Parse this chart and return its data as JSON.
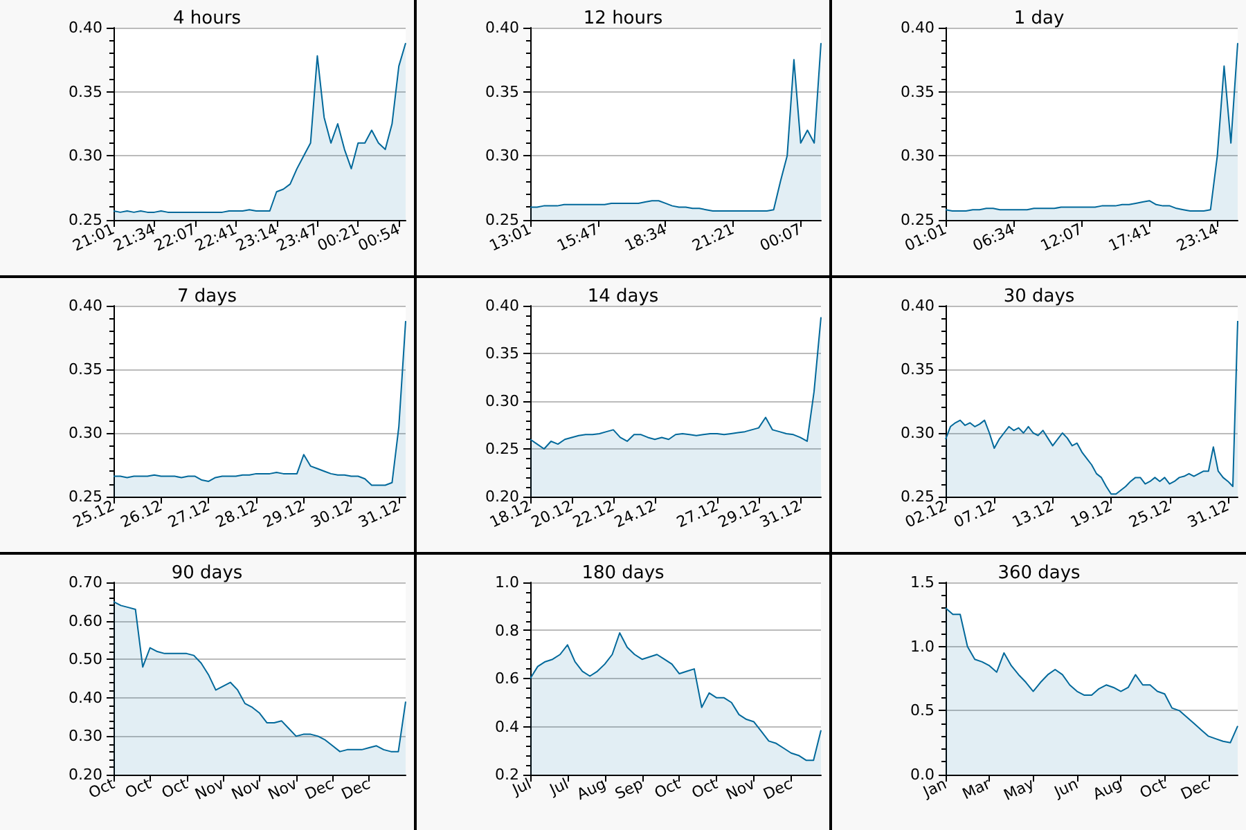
{
  "chart_data": [
    {
      "type": "area",
      "title": "4 hours",
      "color": "#00689a",
      "grid": "y",
      "ylim": [
        0.25,
        0.4
      ],
      "yticks": [
        0.25,
        {
          "value": 0.3,
          "label": "0.30"
        },
        0.35,
        {
          "value": 0.4,
          "label": "0.40"
        }
      ],
      "categories": [
        "21:01",
        null,
        null,
        null,
        null,
        null,
        "21:34",
        null,
        null,
        null,
        null,
        null,
        "22:07",
        null,
        null,
        null,
        null,
        null,
        "22:41",
        null,
        null,
        null,
        null,
        null,
        "23:14",
        null,
        null,
        null,
        null,
        null,
        "23:47",
        null,
        null,
        null,
        null,
        null,
        "00:21",
        null,
        null,
        null,
        null,
        null,
        "00:54",
        null
      ],
      "values": [
        0.257,
        0.256,
        0.257,
        0.256,
        0.257,
        0.256,
        0.256,
        0.257,
        0.256,
        0.256,
        0.256,
        0.256,
        0.256,
        0.256,
        0.256,
        0.256,
        0.256,
        0.257,
        0.257,
        0.257,
        0.258,
        0.257,
        0.257,
        0.257,
        0.272,
        0.274,
        0.278,
        0.29,
        0.3,
        0.31,
        0.378,
        0.33,
        0.31,
        0.325,
        0.305,
        0.29,
        0.31,
        0.31,
        0.32,
        0.31,
        0.305,
        0.325,
        0.37,
        0.388
      ]
    },
    {
      "type": "area",
      "title": "12 hours",
      "color": "#00689a",
      "grid": "y",
      "ylim": [
        0.25,
        0.4
      ],
      "yticks": [
        0.25,
        {
          "value": 0.3,
          "label": "0.30"
        },
        0.35,
        {
          "value": 0.4,
          "label": "0.40"
        }
      ],
      "categories": [
        "13:01",
        null,
        null,
        null,
        null,
        null,
        null,
        null,
        null,
        null,
        "15:47",
        null,
        null,
        null,
        null,
        null,
        null,
        null,
        null,
        null,
        "18:34",
        null,
        null,
        null,
        null,
        null,
        null,
        null,
        null,
        null,
        "21:21",
        null,
        null,
        null,
        null,
        null,
        null,
        null,
        null,
        null,
        "00:07",
        null,
        null,
        null
      ],
      "values": [
        0.26,
        0.26,
        0.261,
        0.261,
        0.261,
        0.262,
        0.262,
        0.262,
        0.262,
        0.262,
        0.262,
        0.262,
        0.263,
        0.263,
        0.263,
        0.263,
        0.263,
        0.264,
        0.265,
        0.265,
        0.263,
        0.261,
        0.26,
        0.26,
        0.259,
        0.259,
        0.258,
        0.257,
        0.257,
        0.257,
        0.257,
        0.257,
        0.257,
        0.257,
        0.257,
        0.257,
        0.258,
        0.28,
        0.3,
        0.375,
        0.31,
        0.32,
        0.31,
        0.388
      ]
    },
    {
      "type": "area",
      "title": "1 day",
      "color": "#00689a",
      "grid": "y",
      "ylim": [
        0.25,
        0.4
      ],
      "yticks": [
        0.25,
        {
          "value": 0.3,
          "label": "0.30"
        },
        0.35,
        {
          "value": 0.4,
          "label": "0.40"
        }
      ],
      "categories": [
        "01:01",
        null,
        null,
        null,
        null,
        null,
        null,
        null,
        null,
        null,
        "06:34",
        null,
        null,
        null,
        null,
        null,
        null,
        null,
        null,
        null,
        "12:07",
        null,
        null,
        null,
        null,
        null,
        null,
        null,
        null,
        null,
        "17:41",
        null,
        null,
        null,
        null,
        null,
        null,
        null,
        null,
        null,
        "23:14",
        null,
        null,
        null
      ],
      "values": [
        0.258,
        0.257,
        0.257,
        0.257,
        0.258,
        0.258,
        0.259,
        0.259,
        0.258,
        0.258,
        0.258,
        0.258,
        0.258,
        0.259,
        0.259,
        0.259,
        0.259,
        0.26,
        0.26,
        0.26,
        0.26,
        0.26,
        0.26,
        0.261,
        0.261,
        0.261,
        0.262,
        0.262,
        0.263,
        0.264,
        0.265,
        0.262,
        0.261,
        0.261,
        0.259,
        0.258,
        0.257,
        0.257,
        0.257,
        0.258,
        0.3,
        0.37,
        0.31,
        0.388
      ]
    },
    {
      "type": "area",
      "title": "7 days",
      "color": "#00689a",
      "grid": "y",
      "ylim": [
        0.25,
        0.4
      ],
      "yticks": [
        0.25,
        {
          "value": 0.3,
          "label": "0.30"
        },
        0.35,
        {
          "value": 0.4,
          "label": "0.40"
        }
      ],
      "categories": [
        "25.12",
        null,
        null,
        null,
        null,
        null,
        null,
        "26.12",
        null,
        null,
        null,
        null,
        null,
        null,
        "27.12",
        null,
        null,
        null,
        null,
        null,
        null,
        "28.12",
        null,
        null,
        null,
        null,
        null,
        null,
        "29.12",
        null,
        null,
        null,
        null,
        null,
        null,
        "30.12",
        null,
        null,
        null,
        null,
        null,
        null,
        "31.12",
        null
      ],
      "values": [
        0.266,
        0.266,
        0.265,
        0.266,
        0.266,
        0.266,
        0.267,
        0.266,
        0.266,
        0.266,
        0.265,
        0.266,
        0.266,
        0.263,
        0.262,
        0.265,
        0.266,
        0.266,
        0.266,
        0.267,
        0.267,
        0.268,
        0.268,
        0.268,
        0.269,
        0.268,
        0.268,
        0.268,
        0.283,
        0.274,
        0.272,
        0.27,
        0.268,
        0.267,
        0.267,
        0.266,
        0.266,
        0.264,
        0.259,
        0.259,
        0.259,
        0.261,
        0.305,
        0.388
      ]
    },
    {
      "type": "area",
      "title": "14 days",
      "color": "#00689a",
      "grid": "y",
      "ylim": [
        0.2,
        0.4
      ],
      "yticks": [
        {
          "value": 0.2,
          "label": "0.20"
        },
        0.25,
        {
          "value": 0.3,
          "label": "0.30"
        },
        0.35,
        {
          "value": 0.4,
          "label": "0.40"
        }
      ],
      "categories": [
        "18.12",
        null,
        null,
        null,
        null,
        null,
        "20.12",
        null,
        null,
        null,
        null,
        null,
        "22.12",
        null,
        null,
        null,
        null,
        null,
        "24.12",
        null,
        null,
        null,
        null,
        null,
        null,
        null,
        null,
        "27.12",
        null,
        null,
        null,
        null,
        null,
        "29.12",
        null,
        null,
        null,
        null,
        null,
        "31.12",
        null,
        null,
        null
      ],
      "values": [
        0.26,
        0.255,
        0.25,
        0.258,
        0.255,
        0.26,
        0.262,
        0.264,
        0.265,
        0.265,
        0.266,
        0.268,
        0.27,
        0.262,
        0.258,
        0.265,
        0.265,
        0.262,
        0.26,
        0.262,
        0.26,
        0.265,
        0.266,
        0.265,
        0.264,
        0.265,
        0.266,
        0.266,
        0.265,
        0.266,
        0.267,
        0.268,
        0.27,
        0.272,
        0.283,
        0.27,
        0.268,
        0.266,
        0.265,
        0.262,
        0.258,
        0.31,
        0.388
      ]
    },
    {
      "type": "area",
      "title": "30 days",
      "color": "#00689a",
      "grid": "y",
      "ylim": [
        0.25,
        0.4
      ],
      "yticks": [
        0.25,
        {
          "value": 0.3,
          "label": "0.30"
        },
        0.35,
        {
          "value": 0.4,
          "label": "0.40"
        }
      ],
      "categories": [
        "02.12",
        null,
        null,
        null,
        null,
        null,
        null,
        null,
        null,
        null,
        "07.12",
        null,
        null,
        null,
        null,
        null,
        null,
        null,
        null,
        null,
        null,
        null,
        "13.12",
        null,
        null,
        null,
        null,
        null,
        null,
        null,
        null,
        null,
        null,
        null,
        "19.12",
        null,
        null,
        null,
        null,
        null,
        null,
        null,
        null,
        null,
        null,
        null,
        "25.12",
        null,
        null,
        null,
        null,
        null,
        null,
        null,
        null,
        null,
        null,
        null,
        "31.12",
        null,
        null
      ],
      "values": [
        0.295,
        0.305,
        0.308,
        0.31,
        0.306,
        0.308,
        0.305,
        0.307,
        0.31,
        0.3,
        0.288,
        0.295,
        0.3,
        0.305,
        0.302,
        0.304,
        0.3,
        0.305,
        0.3,
        0.298,
        0.302,
        0.296,
        0.29,
        0.295,
        0.3,
        0.296,
        0.29,
        0.292,
        0.285,
        0.28,
        0.275,
        0.268,
        0.265,
        0.258,
        0.252,
        0.252,
        0.255,
        0.258,
        0.262,
        0.265,
        0.265,
        0.26,
        0.262,
        0.265,
        0.262,
        0.265,
        0.26,
        0.262,
        0.265,
        0.266,
        0.268,
        0.266,
        0.268,
        0.27,
        0.27,
        0.289,
        0.27,
        0.265,
        0.262,
        0.258,
        0.388
      ]
    },
    {
      "type": "area",
      "title": "90 days",
      "color": "#00689a",
      "grid": "y",
      "ylim": [
        0.2,
        0.7
      ],
      "yticks": [
        {
          "value": 0.2,
          "label": "0.20"
        },
        {
          "value": 0.3,
          "label": "0.30"
        },
        {
          "value": 0.4,
          "label": "0.40"
        },
        {
          "value": 0.5,
          "label": "0.50"
        },
        {
          "value": 0.6,
          "label": "0.60"
        },
        {
          "value": 0.7,
          "label": "0.70"
        }
      ],
      "categories": [
        "Oct",
        null,
        null,
        null,
        null,
        "Oct",
        null,
        null,
        null,
        null,
        "Oct",
        null,
        null,
        null,
        null,
        "Nov",
        null,
        null,
        null,
        null,
        "Nov",
        null,
        null,
        null,
        null,
        "Nov",
        null,
        null,
        null,
        null,
        "Dec",
        null,
        null,
        null,
        null,
        "Dec",
        null,
        null,
        null,
        null,
        null
      ],
      "values": [
        0.65,
        0.64,
        0.635,
        0.63,
        0.48,
        0.53,
        0.52,
        0.515,
        0.515,
        0.515,
        0.515,
        0.51,
        0.49,
        0.46,
        0.42,
        0.43,
        0.44,
        0.42,
        0.385,
        0.375,
        0.36,
        0.335,
        0.335,
        0.34,
        0.32,
        0.3,
        0.305,
        0.305,
        0.3,
        0.29,
        0.275,
        0.26,
        0.265,
        0.265,
        0.265,
        0.27,
        0.275,
        0.265,
        0.26,
        0.26,
        0.39
      ]
    },
    {
      "type": "area",
      "title": "180 days",
      "color": "#00689a",
      "grid": "y",
      "ylim": [
        0.2,
        1.0
      ],
      "yticks": [
        0.2,
        0.4,
        0.6,
        0.8,
        {
          "value": 1.0,
          "label": "1.0"
        }
      ],
      "categories": [
        "Jul",
        null,
        null,
        null,
        null,
        "Jul",
        null,
        null,
        null,
        null,
        "Aug",
        null,
        null,
        null,
        null,
        "Sep",
        null,
        null,
        null,
        null,
        "Oct",
        null,
        null,
        null,
        null,
        "Oct",
        null,
        null,
        null,
        null,
        "Nov",
        null,
        null,
        null,
        null,
        "Dec",
        null,
        null,
        null,
        null
      ],
      "values": [
        0.6,
        0.65,
        0.67,
        0.68,
        0.7,
        0.74,
        0.67,
        0.63,
        0.61,
        0.63,
        0.66,
        0.7,
        0.79,
        0.73,
        0.7,
        0.68,
        0.69,
        0.7,
        0.68,
        0.66,
        0.62,
        0.63,
        0.64,
        0.48,
        0.54,
        0.52,
        0.52,
        0.5,
        0.45,
        0.43,
        0.42,
        0.38,
        0.34,
        0.33,
        0.31,
        0.29,
        0.28,
        0.26,
        0.26,
        0.385
      ]
    },
    {
      "type": "area",
      "title": "360 days",
      "color": "#00689a",
      "grid": "y",
      "ylim": [
        0.0,
        1.5
      ],
      "yticks": [
        {
          "value": 0,
          "label": "0.0"
        },
        0.5,
        {
          "value": 1.0,
          "label": "1.0"
        },
        1.5
      ],
      "categories": [
        "Jan",
        null,
        null,
        null,
        null,
        null,
        "Mar",
        null,
        null,
        null,
        null,
        null,
        "May",
        null,
        null,
        null,
        null,
        null,
        "Jun",
        null,
        null,
        null,
        null,
        null,
        "Aug",
        null,
        null,
        null,
        null,
        null,
        "Oct",
        null,
        null,
        null,
        null,
        null,
        "Dec",
        null,
        null,
        null,
        null
      ],
      "values": [
        1.3,
        1.25,
        1.25,
        1.0,
        0.9,
        0.88,
        0.85,
        0.8,
        0.95,
        0.85,
        0.78,
        0.72,
        0.65,
        0.72,
        0.78,
        0.82,
        0.78,
        0.7,
        0.65,
        0.62,
        0.62,
        0.67,
        0.7,
        0.68,
        0.65,
        0.68,
        0.78,
        0.7,
        0.7,
        0.65,
        0.63,
        0.52,
        0.5,
        0.45,
        0.4,
        0.35,
        0.3,
        0.28,
        0.26,
        0.25,
        0.38
      ]
    }
  ]
}
